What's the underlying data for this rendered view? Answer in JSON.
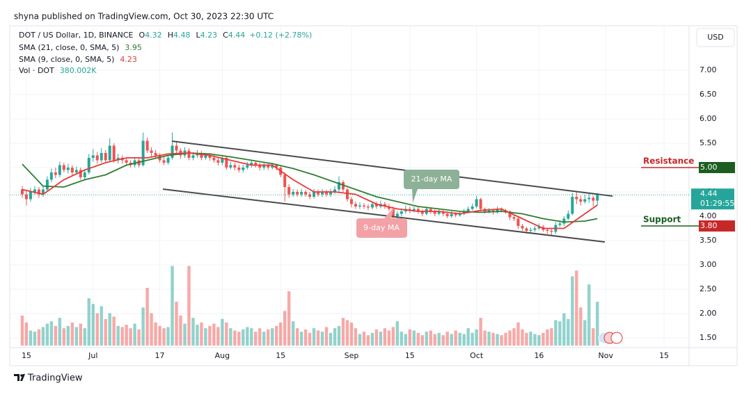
{
  "header": {
    "published": "shyna published on TradingView.com, Oct 30, 2023 22:30 UTC",
    "brand": "TradingView",
    "currency": "USD",
    "countdown": "01:29:55"
  },
  "chart_data": {
    "type": "candlestick",
    "symbol": "DOT / US Dollar, 1D, BINANCE",
    "o_label": "O",
    "h_label": "H",
    "l_label": "L",
    "c_label": "C",
    "change": "+0.12 (+2.78%)",
    "volume_name": "Vol · DOT",
    "volume_label": "380.002K",
    "up_color": "#26a69a",
    "down_color": "#ef5350",
    "xlim": [
      "2023-06-11",
      "2023-11-21"
    ],
    "xticks": [
      {
        "value": "2023-06-15",
        "label": "15"
      },
      {
        "value": "2023-07-01",
        "label": "Jul"
      },
      {
        "value": "2023-07-17",
        "label": "17"
      },
      {
        "value": "2023-08-01",
        "label": "Aug"
      },
      {
        "value": "2023-08-15",
        "label": "15"
      },
      {
        "value": "2023-09-01",
        "label": "Sep"
      },
      {
        "value": "2023-09-15",
        "label": "15"
      },
      {
        "value": "2023-10-01",
        "label": "Oct"
      },
      {
        "value": "2023-10-16",
        "label": "16"
      },
      {
        "value": "2023-11-01",
        "label": "Nov"
      },
      {
        "value": "2023-11-15",
        "label": "15"
      }
    ],
    "ylim": [
      1.3,
      7.9
    ],
    "yticks": [
      {
        "value": 7,
        "label": "7.00"
      },
      {
        "value": 6.5,
        "label": "6.50"
      },
      {
        "value": 6,
        "label": "6.00"
      },
      {
        "value": 5.5,
        "label": "5.50"
      },
      {
        "value": 5,
        "label": "5.00"
      },
      {
        "value": 4.5,
        "label": "4.50"
      },
      {
        "value": 4,
        "label": "4.00"
      },
      {
        "value": 3.5,
        "label": "3.50"
      },
      {
        "value": 3,
        "label": "3.00"
      },
      {
        "value": 2.5,
        "label": "2.50"
      },
      {
        "value": 2,
        "label": "2.00"
      },
      {
        "value": 1.5,
        "label": "1.50"
      }
    ],
    "grid": true,
    "x": [
      "2023-06-14",
      "2023-06-15",
      "2023-06-16",
      "2023-06-17",
      "2023-06-18",
      "2023-06-19",
      "2023-06-20",
      "2023-06-21",
      "2023-06-22",
      "2023-06-23",
      "2023-06-24",
      "2023-06-25",
      "2023-06-26",
      "2023-06-27",
      "2023-06-28",
      "2023-06-29",
      "2023-06-30",
      "2023-07-01",
      "2023-07-02",
      "2023-07-03",
      "2023-07-04",
      "2023-07-05",
      "2023-07-06",
      "2023-07-07",
      "2023-07-08",
      "2023-07-09",
      "2023-07-10",
      "2023-07-11",
      "2023-07-12",
      "2023-07-13",
      "2023-07-14",
      "2023-07-15",
      "2023-07-16",
      "2023-07-17",
      "2023-07-18",
      "2023-07-19",
      "2023-07-20",
      "2023-07-21",
      "2023-07-22",
      "2023-07-23",
      "2023-07-24",
      "2023-07-25",
      "2023-07-26",
      "2023-07-27",
      "2023-07-28",
      "2023-07-29",
      "2023-07-30",
      "2023-07-31",
      "2023-08-01",
      "2023-08-02",
      "2023-08-03",
      "2023-08-04",
      "2023-08-05",
      "2023-08-06",
      "2023-08-07",
      "2023-08-08",
      "2023-08-09",
      "2023-08-10",
      "2023-08-11",
      "2023-08-12",
      "2023-08-13",
      "2023-08-14",
      "2023-08-15",
      "2023-08-16",
      "2023-08-17",
      "2023-08-18",
      "2023-08-19",
      "2023-08-20",
      "2023-08-21",
      "2023-08-22",
      "2023-08-23",
      "2023-08-24",
      "2023-08-25",
      "2023-08-26",
      "2023-08-27",
      "2023-08-28",
      "2023-08-29",
      "2023-08-30",
      "2023-08-31",
      "2023-09-01",
      "2023-09-02",
      "2023-09-03",
      "2023-09-04",
      "2023-09-05",
      "2023-09-06",
      "2023-09-07",
      "2023-09-08",
      "2023-09-09",
      "2023-09-10",
      "2023-09-11",
      "2023-09-12",
      "2023-09-13",
      "2023-09-14",
      "2023-09-15",
      "2023-09-16",
      "2023-09-17",
      "2023-09-18",
      "2023-09-19",
      "2023-09-20",
      "2023-09-21",
      "2023-09-22",
      "2023-09-23",
      "2023-09-24",
      "2023-09-25",
      "2023-09-26",
      "2023-09-27",
      "2023-09-28",
      "2023-09-29",
      "2023-09-30",
      "2023-10-01",
      "2023-10-02",
      "2023-10-03",
      "2023-10-04",
      "2023-10-05",
      "2023-10-06",
      "2023-10-07",
      "2023-10-08",
      "2023-10-09",
      "2023-10-10",
      "2023-10-11",
      "2023-10-12",
      "2023-10-13",
      "2023-10-14",
      "2023-10-15",
      "2023-10-16",
      "2023-10-17",
      "2023-10-18",
      "2023-10-19",
      "2023-10-20",
      "2023-10-21",
      "2023-10-22",
      "2023-10-23",
      "2023-10-24",
      "2023-10-25",
      "2023-10-26",
      "2023-10-27",
      "2023-10-28",
      "2023-10-29",
      "2023-10-30"
    ],
    "open": [
      4.55,
      4.45,
      4.35,
      4.5,
      4.55,
      4.45,
      4.55,
      4.75,
      4.9,
      4.85,
      5.05,
      4.95,
      5.0,
      4.9,
      4.95,
      4.8,
      4.9,
      5.2,
      5.25,
      5.15,
      5.3,
      5.15,
      5.45,
      5.15,
      5.2,
      5.15,
      5.1,
      5.05,
      5.15,
      5.05,
      5.55,
      5.35,
      5.3,
      5.25,
      5.15,
      5.1,
      5.2,
      5.45,
      5.35,
      5.25,
      5.35,
      5.2,
      5.25,
      5.3,
      5.2,
      5.25,
      5.2,
      5.15,
      5.1,
      5.2,
      5.0,
      5.05,
      5.0,
      4.95,
      5.0,
      5.05,
      5.1,
      5.05,
      5.0,
      5.05,
      5.0,
      5.05,
      5.0,
      4.85,
      4.6,
      4.45,
      4.5,
      4.45,
      4.5,
      4.45,
      4.4,
      4.5,
      4.45,
      4.5,
      4.45,
      4.5,
      4.55,
      4.7,
      4.55,
      4.35,
      4.25,
      4.2,
      4.22,
      4.2,
      4.18,
      4.25,
      4.2,
      4.25,
      4.2,
      4.15,
      4.0,
      4.05,
      4.1,
      4.15,
      4.12,
      4.15,
      4.1,
      4.05,
      4.15,
      4.1,
      4.05,
      4.1,
      4.05,
      4.0,
      4.05,
      4.02,
      4.05,
      4.1,
      4.15,
      4.2,
      4.35,
      4.15,
      4.1,
      4.12,
      4.08,
      4.15,
      4.12,
      4.1,
      3.98,
      3.95,
      3.8,
      3.75,
      3.7,
      3.72,
      3.75,
      3.78,
      3.72,
      3.7,
      3.68,
      3.82,
      3.85,
      3.95,
      4.05,
      4.4,
      4.35,
      4.3,
      4.35,
      4.38,
      4.32
    ],
    "high": [
      4.62,
      4.52,
      4.58,
      4.62,
      4.6,
      4.62,
      4.82,
      4.98,
      5.0,
      5.12,
      5.1,
      5.08,
      5.05,
      5.02,
      5.0,
      4.96,
      5.28,
      5.38,
      5.32,
      5.4,
      5.36,
      5.6,
      5.5,
      5.28,
      5.25,
      5.2,
      5.15,
      5.22,
      5.2,
      5.72,
      5.62,
      5.42,
      5.36,
      5.3,
      5.22,
      5.26,
      5.72,
      5.55,
      5.4,
      5.42,
      5.4,
      5.32,
      5.36,
      5.34,
      5.3,
      5.3,
      5.26,
      5.22,
      5.26,
      5.24,
      5.12,
      5.1,
      5.06,
      5.06,
      5.12,
      5.16,
      5.14,
      5.1,
      5.1,
      5.1,
      5.1,
      5.08,
      5.04,
      4.9,
      4.66,
      4.56,
      4.55,
      4.56,
      4.54,
      4.5,
      4.56,
      4.55,
      4.56,
      4.54,
      4.56,
      4.62,
      4.82,
      4.74,
      4.58,
      4.4,
      4.3,
      4.28,
      4.27,
      4.25,
      4.3,
      4.3,
      4.32,
      4.3,
      4.26,
      4.2,
      4.1,
      4.16,
      4.22,
      4.2,
      4.2,
      4.19,
      4.14,
      4.2,
      4.18,
      4.14,
      4.15,
      4.13,
      4.1,
      4.1,
      4.08,
      4.1,
      4.15,
      4.2,
      4.26,
      4.42,
      4.38,
      4.18,
      4.17,
      4.15,
      4.2,
      4.18,
      4.15,
      4.12,
      4.02,
      3.98,
      3.84,
      3.78,
      3.77,
      3.8,
      3.85,
      3.82,
      3.76,
      3.74,
      3.88,
      3.92,
      4.0,
      4.12,
      4.48,
      4.5,
      4.42,
      4.44,
      4.48,
      4.42,
      4.48
    ],
    "low": [
      4.38,
      4.22,
      4.3,
      4.44,
      4.38,
      4.4,
      4.5,
      4.7,
      4.78,
      4.8,
      4.9,
      4.88,
      4.84,
      4.85,
      4.75,
      4.76,
      4.86,
      5.12,
      5.08,
      5.1,
      5.1,
      5.12,
      5.1,
      5.08,
      5.08,
      5.04,
      5.0,
      5.0,
      5.0,
      5.02,
      5.3,
      5.22,
      5.18,
      5.1,
      5.05,
      5.06,
      5.16,
      5.28,
      5.18,
      5.2,
      5.15,
      5.15,
      5.2,
      5.15,
      5.16,
      5.14,
      5.1,
      5.04,
      5.05,
      4.95,
      4.96,
      4.94,
      4.9,
      4.9,
      4.96,
      5.0,
      5.0,
      4.94,
      4.95,
      4.95,
      4.96,
      4.94,
      4.8,
      4.3,
      4.38,
      4.4,
      4.4,
      4.4,
      4.4,
      4.35,
      4.36,
      4.4,
      4.4,
      4.4,
      4.4,
      4.46,
      4.5,
      4.5,
      4.3,
      4.18,
      4.15,
      4.15,
      4.15,
      4.12,
      4.14,
      4.15,
      4.16,
      4.15,
      4.1,
      3.94,
      3.95,
      4.0,
      4.05,
      4.06,
      4.08,
      4.05,
      4.0,
      4.02,
      4.05,
      4.0,
      4.02,
      4.0,
      3.96,
      3.97,
      3.98,
      3.99,
      4.02,
      4.06,
      4.12,
      4.16,
      4.1,
      4.05,
      4.06,
      4.03,
      4.05,
      4.08,
      4.05,
      3.92,
      3.9,
      3.74,
      3.7,
      3.64,
      3.66,
      3.68,
      3.72,
      3.68,
      3.64,
      3.6,
      3.64,
      3.78,
      3.8,
      3.92,
      4.02,
      4.25,
      4.22,
      4.26,
      4.28,
      4.2,
      4.23
    ],
    "close": [
      4.45,
      4.35,
      4.5,
      4.55,
      4.45,
      4.55,
      4.75,
      4.9,
      4.85,
      5.05,
      4.95,
      5.0,
      4.9,
      4.95,
      4.8,
      4.9,
      5.2,
      5.25,
      5.15,
      5.3,
      5.15,
      5.45,
      5.15,
      5.2,
      5.15,
      5.1,
      5.05,
      5.15,
      5.05,
      5.55,
      5.35,
      5.3,
      5.25,
      5.15,
      5.1,
      5.2,
      5.45,
      5.35,
      5.25,
      5.35,
      5.2,
      5.25,
      5.3,
      5.2,
      5.25,
      5.2,
      5.15,
      5.1,
      5.2,
      5.0,
      5.05,
      5.0,
      4.95,
      5.0,
      5.05,
      5.1,
      5.05,
      5.0,
      5.05,
      5.0,
      5.05,
      5.0,
      4.85,
      4.6,
      4.45,
      4.5,
      4.45,
      4.5,
      4.45,
      4.4,
      4.5,
      4.45,
      4.5,
      4.45,
      4.5,
      4.55,
      4.7,
      4.55,
      4.35,
      4.25,
      4.2,
      4.22,
      4.2,
      4.18,
      4.25,
      4.2,
      4.25,
      4.2,
      4.15,
      4.0,
      4.05,
      4.1,
      4.15,
      4.12,
      4.15,
      4.1,
      4.05,
      4.15,
      4.1,
      4.05,
      4.1,
      4.05,
      4.0,
      4.05,
      4.02,
      4.05,
      4.1,
      4.15,
      4.2,
      4.35,
      4.15,
      4.1,
      4.12,
      4.08,
      4.15,
      4.12,
      4.1,
      3.98,
      3.95,
      3.8,
      3.75,
      3.7,
      3.72,
      3.75,
      3.78,
      3.72,
      3.7,
      3.68,
      3.82,
      3.85,
      3.95,
      4.05,
      4.4,
      4.35,
      4.3,
      4.35,
      4.38,
      4.32,
      4.44
    ],
    "volume": [
      260,
      200,
      130,
      120,
      140,
      160,
      190,
      210,
      170,
      240,
      150,
      170,
      200,
      160,
      190,
      150,
      410,
      360,
      280,
      340,
      230,
      280,
      250,
      170,
      160,
      180,
      150,
      190,
      140,
      330,
      500,
      280,
      200,
      170,
      150,
      160,
      690,
      380,
      260,
      190,
      690,
      240,
      180,
      200,
      150,
      170,
      190,
      160,
      230,
      200,
      150,
      130,
      120,
      140,
      160,
      150,
      120,
      150,
      120,
      140,
      150,
      170,
      200,
      300,
      470,
      210,
      150,
      120,
      140,
      110,
      150,
      130,
      120,
      160,
      110,
      150,
      170,
      240,
      220,
      200,
      150,
      100,
      120,
      90,
      110,
      140,
      120,
      150,
      130,
      160,
      210,
      120,
      100,
      140,
      130,
      110,
      90,
      120,
      130,
      100,
      110,
      90,
      120,
      100,
      130,
      110,
      100,
      150,
      110,
      140,
      240,
      130,
      120,
      110,
      100,
      90,
      110,
      130,
      150,
      200,
      140,
      110,
      120,
      100,
      90,
      110,
      140,
      150,
      220,
      210,
      280,
      230,
      600,
      650,
      330,
      220,
      530,
      150,
      380.002
    ],
    "lines": [
      {
        "name": "SMA (21, close, 0, SMA, 5)",
        "color": "#2e7d32",
        "x": [
          "2023-06-14",
          "2023-06-19",
          "2023-06-24",
          "2023-06-29",
          "2023-07-04",
          "2023-07-09",
          "2023-07-14",
          "2023-07-19",
          "2023-07-24",
          "2023-07-29",
          "2023-08-03",
          "2023-08-08",
          "2023-08-13",
          "2023-08-18",
          "2023-08-23",
          "2023-08-28",
          "2023-09-02",
          "2023-09-07",
          "2023-09-12",
          "2023-09-17",
          "2023-09-22",
          "2023-09-27",
          "2023-10-02",
          "2023-10-07",
          "2023-10-12",
          "2023-10-17",
          "2023-10-22",
          "2023-10-27",
          "2023-10-30"
        ],
        "values": [
          5.07,
          4.62,
          4.6,
          4.75,
          4.85,
          5.05,
          5.15,
          5.25,
          5.3,
          5.28,
          5.22,
          5.15,
          5.08,
          4.98,
          4.85,
          4.7,
          4.55,
          4.4,
          4.3,
          4.2,
          4.15,
          4.1,
          4.08,
          4.1,
          4.05,
          3.95,
          3.88,
          3.9,
          3.95
        ]
      },
      {
        "name": "SMA (9, close, 0, SMA, 5)",
        "color": "#e53935",
        "x": [
          "2023-06-14",
          "2023-06-19",
          "2023-06-24",
          "2023-06-29",
          "2023-07-04",
          "2023-07-09",
          "2023-07-14",
          "2023-07-19",
          "2023-07-24",
          "2023-07-29",
          "2023-08-03",
          "2023-08-08",
          "2023-08-13",
          "2023-08-18",
          "2023-08-23",
          "2023-08-28",
          "2023-09-02",
          "2023-09-07",
          "2023-09-12",
          "2023-09-17",
          "2023-09-22",
          "2023-09-27",
          "2023-10-02",
          "2023-10-07",
          "2023-10-12",
          "2023-10-17",
          "2023-10-22",
          "2023-10-27",
          "2023-10-30"
        ],
        "values": [
          4.55,
          4.45,
          4.75,
          4.95,
          5.1,
          5.2,
          5.2,
          5.28,
          5.3,
          5.25,
          5.15,
          5.05,
          5.05,
          4.75,
          4.5,
          4.5,
          4.45,
          4.25,
          4.15,
          4.1,
          4.1,
          4.05,
          4.12,
          4.15,
          3.95,
          3.75,
          3.75,
          4.05,
          4.23
        ]
      }
    ],
    "annotations": [
      "21-day MA",
      "9-day MA"
    ],
    "levels": [
      {
        "name": "Resistance",
        "price": {
          "value": 5,
          "label": "5.00"
        },
        "color": "#c62828",
        "box_color": "#1b5e20"
      },
      {
        "name": "Support",
        "price": {
          "value": 3.8,
          "label": "3.80"
        },
        "color": "#1b5e20",
        "box_color": "#c62828"
      }
    ]
  }
}
